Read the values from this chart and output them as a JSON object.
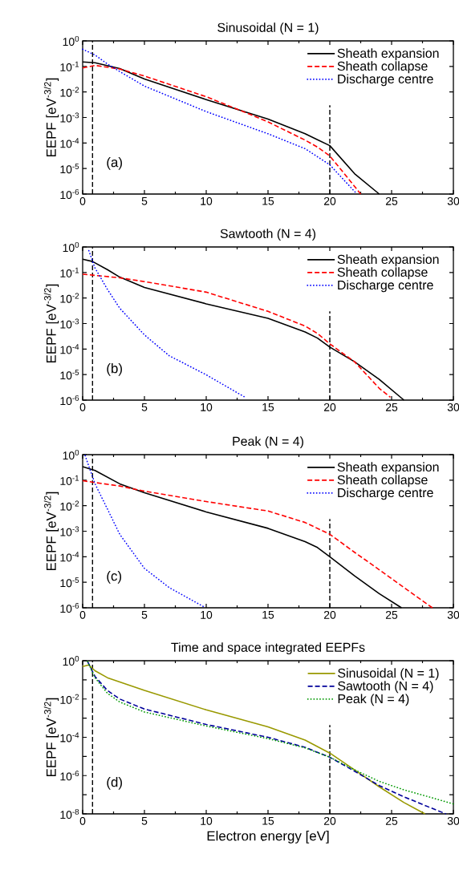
{
  "chart_data": [
    {
      "type": "line",
      "title": "Sinusoidal (N = 1)",
      "ylabel": "EEPF [eV$^{-3/2}$]",
      "log": "y",
      "legend": "top right",
      "xlim": [
        0,
        30
      ],
      "ylim": [
        1e-06,
        1
      ],
      "xticks": [
        0,
        5,
        10,
        15,
        20,
        25,
        30
      ],
      "yticks": [
        {
          "value": 1,
          "label": "10$^{0}$"
        },
        {
          "value": 0.1,
          "label": "10$^{-1}$"
        },
        {
          "value": 0.01,
          "label": "10$^{-2}$"
        },
        {
          "value": 0.001,
          "label": "10$^{-3}$"
        },
        {
          "value": 0.0001,
          "label": "10$^{-4}$"
        },
        {
          "value": 1e-05,
          "label": "10$^{-5}$"
        },
        {
          "value": 1e-06,
          "label": "10$^{-6}$"
        }
      ],
      "ref_lines": [
        {
          "axis": "x",
          "value": 0.8,
          "color": "#000000",
          "line_style": "dashed"
        },
        {
          "axis": "x",
          "value": 20,
          "color": "#000000",
          "line_style": "dashed"
        }
      ],
      "annotations": [
        "(a)"
      ],
      "series": [
        {
          "name": "Sheath expansion",
          "color": "#000000",
          "line_style": "solid",
          "x": [
            0,
            1,
            3,
            5,
            10,
            15,
            18,
            19,
            20,
            22,
            24
          ],
          "values": [
            0.15,
            0.14,
            0.083,
            0.032,
            0.005,
            0.00087,
            0.00023,
            0.000135,
            7.9e-05,
            6.3e-06,
            1e-06
          ]
        },
        {
          "name": "Sheath collapse",
          "color": "#ff0000",
          "line_style": "dashed",
          "x": [
            0,
            1,
            3,
            5,
            10,
            13,
            15,
            18,
            19,
            20,
            21,
            22.5
          ],
          "values": [
            0.087,
            0.11,
            0.079,
            0.042,
            0.0065,
            0.0017,
            0.00067,
            0.00013,
            6.9e-05,
            3.1e-05,
            8e-06,
            1e-06
          ]
        },
        {
          "name": "Discharge centre",
          "color": "#0000ff",
          "line_style": "dotted",
          "x": [
            0,
            1,
            2,
            3,
            5,
            10,
            15,
            18,
            20,
            21,
            22.2
          ],
          "values": [
            0.47,
            0.28,
            0.125,
            0.063,
            0.017,
            0.0017,
            0.00023,
            6e-05,
            1.4e-05,
            4.2e-06,
            1e-06
          ]
        }
      ]
    },
    {
      "type": "line",
      "title": "Sawtooth (N = 4)",
      "ylabel": "EEPF [eV$^{-3/2}$]",
      "log": "y",
      "legend": "top right",
      "xlim": [
        0,
        30
      ],
      "ylim": [
        1e-06,
        1
      ],
      "xticks": [
        0,
        5,
        10,
        15,
        20,
        25,
        30
      ],
      "yticks": [
        {
          "value": 1,
          "label": "10$^{0}$"
        },
        {
          "value": 0.1,
          "label": "10$^{-1}$"
        },
        {
          "value": 0.01,
          "label": "10$^{-2}$"
        },
        {
          "value": 0.001,
          "label": "10$^{-3}$"
        },
        {
          "value": 0.0001,
          "label": "10$^{-4}$"
        },
        {
          "value": 1e-05,
          "label": "10$^{-5}$"
        },
        {
          "value": 1e-06,
          "label": "10$^{-6}$"
        }
      ],
      "ref_lines": [
        {
          "axis": "x",
          "value": 0.8,
          "color": "#000000",
          "line_style": "dashed"
        },
        {
          "axis": "x",
          "value": 20,
          "color": "#000000",
          "line_style": "dashed"
        }
      ],
      "annotations": [
        "(b)"
      ],
      "series": [
        {
          "name": "Sheath expansion",
          "color": "#000000",
          "line_style": "solid",
          "x": [
            0,
            0.8,
            2,
            3,
            5,
            10,
            15,
            18,
            19,
            20,
            22,
            24,
            26
          ],
          "values": [
            0.33,
            0.27,
            0.13,
            0.066,
            0.026,
            0.0059,
            0.0016,
            0.00047,
            0.00027,
            0.00012,
            3.2e-05,
            6.5e-06,
            1e-06
          ]
        },
        {
          "name": "Sheath collapse",
          "color": "#ff0000",
          "line_style": "dashed",
          "x": [
            0,
            3,
            5,
            10,
            15,
            18,
            19,
            20,
            22,
            24,
            24.9
          ],
          "values": [
            0.086,
            0.062,
            0.044,
            0.017,
            0.003,
            0.0008,
            0.00041,
            0.00016,
            3.2e-05,
            2.9e-06,
            1.3e-06
          ]
        },
        {
          "name": "Discharge centre",
          "color": "#0000ff",
          "line_style": "dotted",
          "x": [
            0.5,
            1,
            2,
            3,
            5,
            7,
            10,
            13.2
          ],
          "values": [
            0.72,
            0.15,
            0.022,
            0.004,
            0.00036,
            5.5e-05,
            9.8e-06,
            1.25e-06
          ]
        }
      ]
    },
    {
      "type": "line",
      "title": "Peak (N = 4)",
      "ylabel": "EEPF [eV$^{-3/2}$]",
      "log": "y",
      "legend": "top right",
      "xlim": [
        0,
        30
      ],
      "ylim": [
        1e-06,
        1
      ],
      "xticks": [
        0,
        5,
        10,
        15,
        20,
        25,
        30
      ],
      "yticks": [
        {
          "value": 1,
          "label": "10$^{0}$"
        },
        {
          "value": 0.1,
          "label": "10$^{-1}$"
        },
        {
          "value": 0.01,
          "label": "10$^{-2}$"
        },
        {
          "value": 0.001,
          "label": "10$^{-3}$"
        },
        {
          "value": 0.0001,
          "label": "10$^{-4}$"
        },
        {
          "value": 1e-05,
          "label": "10$^{-5}$"
        },
        {
          "value": 1e-06,
          "label": "10$^{-6}$"
        }
      ],
      "ref_lines": [
        {
          "axis": "x",
          "value": 0.8,
          "color": "#000000",
          "line_style": "dashed"
        },
        {
          "axis": "x",
          "value": 20,
          "color": "#000000",
          "line_style": "dashed"
        }
      ],
      "annotations": [
        "(c)"
      ],
      "series": [
        {
          "name": "Sheath expansion",
          "color": "#000000",
          "line_style": "solid",
          "x": [
            0,
            1,
            3,
            5,
            10,
            15,
            18,
            19,
            20,
            22,
            24,
            25.8
          ],
          "values": [
            0.34,
            0.24,
            0.072,
            0.032,
            0.0057,
            0.0013,
            0.00039,
            0.00023,
            0.0001,
            1.8e-05,
            3.6e-06,
            1e-06
          ]
        },
        {
          "name": "Sheath collapse",
          "color": "#ff0000",
          "line_style": "dashed",
          "x": [
            0,
            3,
            5,
            10,
            15,
            18,
            20,
            22,
            24,
            26,
            28.3
          ],
          "values": [
            0.095,
            0.059,
            0.037,
            0.0145,
            0.0062,
            0.0022,
            0.00076,
            0.00015,
            3.1e-05,
            6.2e-06,
            1e-06
          ]
        },
        {
          "name": "Discharge centre",
          "color": "#0000ff",
          "line_style": "dotted",
          "x": [
            0.2,
            1,
            2,
            3,
            5,
            7,
            9.8
          ],
          "values": [
            0.92,
            0.072,
            0.0075,
            0.00076,
            3.5e-05,
            6.2e-06,
            1.1e-06
          ]
        }
      ]
    },
    {
      "type": "line",
      "title": "Time and space integrated EEPFs",
      "xlabel": "Electron energy [eV]",
      "ylabel": "EEPF [eV$^{-3/2}$]",
      "log": "y",
      "legend": "top right",
      "xlim": [
        0,
        30
      ],
      "ylim": [
        1e-08,
        1
      ],
      "xticks": [
        0,
        5,
        10,
        15,
        20,
        25,
        30
      ],
      "yticks": [
        {
          "value": 1,
          "label": "10$^{0}$"
        },
        {
          "value": 0.1,
          "label": null
        },
        {
          "value": 0.01,
          "label": "10$^{-2}$"
        },
        {
          "value": 0.001,
          "label": null
        },
        {
          "value": 0.0001,
          "label": "10$^{-4}$"
        },
        {
          "value": 1e-05,
          "label": null
        },
        {
          "value": 1e-06,
          "label": "10$^{-6}$"
        },
        {
          "value": 1e-07,
          "label": null
        },
        {
          "value": 1e-08,
          "label": "10$^{-8}$"
        }
      ],
      "ref_lines": [
        {
          "axis": "x",
          "value": 0.8,
          "color": "#000000",
          "line_style": "dashed"
        },
        {
          "axis": "x",
          "value": 20,
          "color": "#000000",
          "line_style": "dashed"
        }
      ],
      "annotations": [
        "(d)"
      ],
      "series": [
        {
          "name": "Sinusoidal (N = 1)",
          "color": "#999900",
          "line_style": "solid",
          "x": [
            0,
            0.5,
            1,
            2,
            5,
            10,
            15,
            18,
            20,
            22,
            24,
            26,
            27.7
          ],
          "values": [
            0.5,
            0.6,
            0.3,
            0.13,
            0.028,
            0.0027,
            0.00035,
            7.1e-05,
            1.5e-05,
            2e-06,
            2.6e-07,
            3.9e-08,
            1e-08
          ]
        },
        {
          "name": "Sawtooth (N = 4)",
          "color": "#00009b",
          "line_style": "dashed",
          "x": [
            0.4,
            1,
            2,
            3,
            5,
            10,
            15,
            18,
            20,
            22,
            24,
            26,
            28,
            29.4
          ],
          "values": [
            0.9,
            0.15,
            0.028,
            0.01,
            0.003,
            0.00047,
            0.0001,
            3e-05,
            9.1e-06,
            1.7e-06,
            3e-07,
            7.8e-08,
            2.3e-08,
            1e-08
          ]
        },
        {
          "name": "Peak (N = 4)",
          "color": "#009900",
          "line_style": "dotted",
          "x": [
            0.4,
            1,
            2,
            3,
            5,
            10,
            15,
            18,
            20,
            22,
            24,
            26,
            28,
            30
          ],
          "values": [
            0.9,
            0.13,
            0.02,
            0.007,
            0.0021,
            0.00039,
            8.5e-05,
            2.8e-05,
            9.1e-06,
            2e-06,
            5e-07,
            1.8e-07,
            7.8e-08,
            3.3e-08
          ]
        }
      ]
    }
  ]
}
